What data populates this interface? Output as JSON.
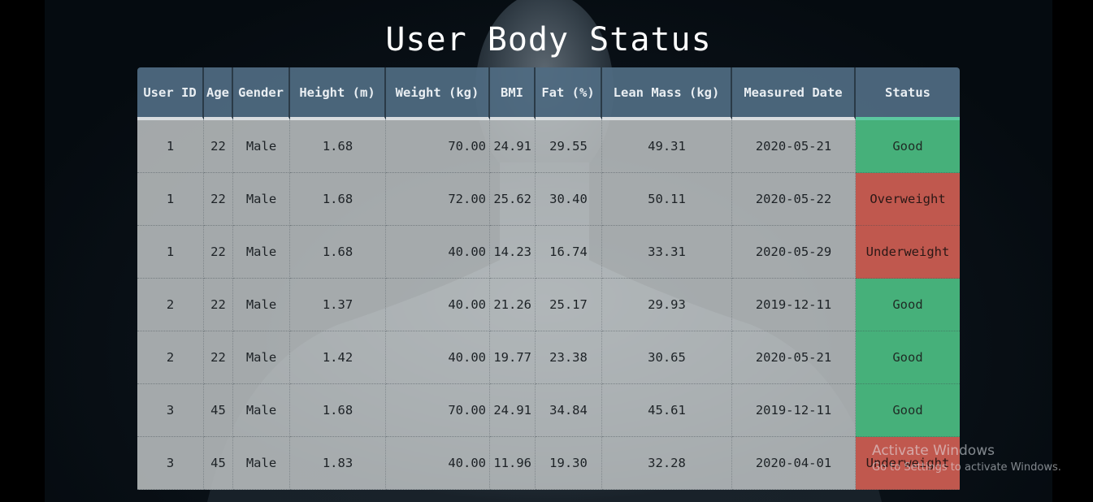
{
  "page": {
    "title": "User Body Status"
  },
  "table": {
    "columns": [
      "User ID",
      "Age",
      "Gender",
      "Height (m)",
      "Weight (kg)",
      "BMI",
      "Fat (%)",
      "Lean Mass (kg)",
      "Measured Date",
      "Status"
    ],
    "rows": [
      [
        "1",
        "22",
        "Male",
        "1.68",
        "70.00",
        "24.91",
        "29.55",
        "49.31",
        "2020-05-21",
        "Good"
      ],
      [
        "1",
        "22",
        "Male",
        "1.68",
        "72.00",
        "25.62",
        "30.40",
        "50.11",
        "2020-05-22",
        "Overweight"
      ],
      [
        "1",
        "22",
        "Male",
        "1.68",
        "40.00",
        "14.23",
        "16.74",
        "33.31",
        "2020-05-29",
        "Underweight"
      ],
      [
        "2",
        "22",
        "Male",
        "1.37",
        "40.00",
        "21.26",
        "25.17",
        "29.93",
        "2019-12-11",
        "Good"
      ],
      [
        "2",
        "22",
        "Male",
        "1.42",
        "40.00",
        "19.77",
        "23.38",
        "30.65",
        "2020-05-21",
        "Good"
      ],
      [
        "3",
        "45",
        "Male",
        "1.68",
        "70.00",
        "24.91",
        "34.84",
        "45.61",
        "2019-12-11",
        "Good"
      ],
      [
        "3",
        "45",
        "Male",
        "1.83",
        "40.00",
        "11.96",
        "19.30",
        "32.28",
        "2020-04-01",
        "Underweight"
      ]
    ]
  },
  "colors": {
    "good": "#46b07a",
    "bad": "#c0584e",
    "header": "#506c82"
  },
  "watermark": {
    "line1": "Activate Windows",
    "line2": "Go to Settings to activate Windows."
  }
}
